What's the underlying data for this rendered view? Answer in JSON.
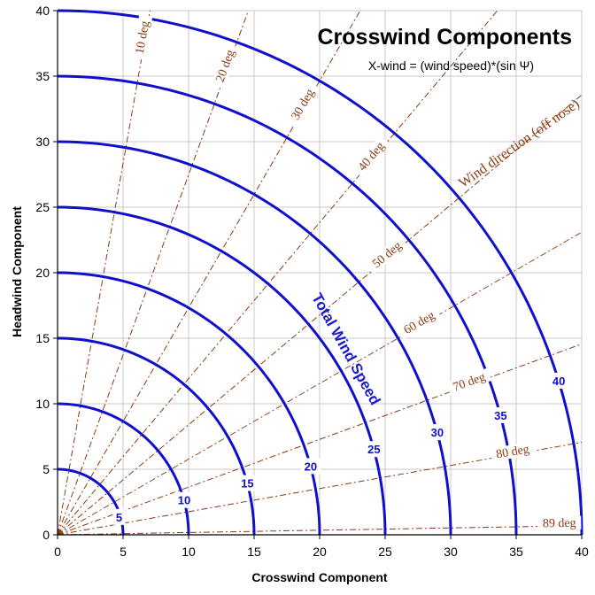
{
  "chart_data": {
    "type": "line",
    "title": "Crosswind Components",
    "subtitle": "X-wind = (wind speed)*(sin Ψ)",
    "xlabel": "Crosswind Component",
    "ylabel": "Headwind Component",
    "xlim": [
      0,
      40
    ],
    "ylim": [
      0,
      40
    ],
    "x_ticks": [
      "0",
      "5",
      "10",
      "15",
      "20",
      "25",
      "30",
      "35",
      "40"
    ],
    "y_ticks": [
      "0",
      "5",
      "10",
      "15",
      "20",
      "25",
      "30",
      "35",
      "40"
    ],
    "grid": true,
    "speed_series_name": "Total Wind Speed",
    "direction_series_name": "Wind direction (off nose)",
    "series": [
      {
        "label": "5",
        "speed": 5
      },
      {
        "label": "10",
        "speed": 10
      },
      {
        "label": "15",
        "speed": 15
      },
      {
        "label": "20",
        "speed": 20
      },
      {
        "label": "25",
        "speed": 25
      },
      {
        "label": "30",
        "speed": 30
      },
      {
        "label": "35",
        "speed": 35
      },
      {
        "label": "40",
        "speed": 40
      }
    ],
    "directions": [
      {
        "label": "10 deg",
        "angle": 10
      },
      {
        "label": "20 deg",
        "angle": 20
      },
      {
        "label": "30 deg",
        "angle": 30
      },
      {
        "label": "40 deg",
        "angle": 40
      },
      {
        "label": "50 deg",
        "angle": 50
      },
      {
        "label": "60 deg",
        "angle": 60
      },
      {
        "label": "70 deg",
        "angle": 70
      },
      {
        "label": "80 deg",
        "angle": 80
      },
      {
        "label": "89 deg",
        "angle": 89
      }
    ],
    "colors": {
      "speed": "#1010cc",
      "direction": "#8b3a10",
      "grid": "#c8c8c8"
    }
  }
}
